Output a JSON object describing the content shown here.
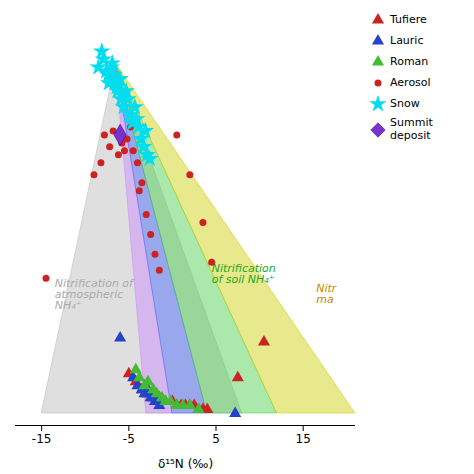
{
  "chart_data": {
    "type": "scatter",
    "xlabel": "δ¹⁵N (‰)",
    "xlim": [
      -18,
      21
    ],
    "ylim": [
      -3,
      100
    ],
    "xticks": [
      -15,
      -5,
      5,
      15
    ],
    "tick_labels": "x",
    "grid": false,
    "legend": "right",
    "zones": [
      {
        "color": "#b8b8b8",
        "points": [
          [
            -6.5,
            88
          ],
          [
            -15,
            0
          ],
          [
            8,
            0
          ]
        ]
      },
      {
        "color": "#cc88ff",
        "points": [
          [
            -6.5,
            88
          ],
          [
            -3,
            0
          ],
          [
            0,
            0
          ]
        ]
      },
      {
        "color": "#4466ff",
        "points": [
          [
            -6.5,
            88
          ],
          [
            0,
            0
          ],
          [
            4,
            0
          ]
        ]
      },
      {
        "color": "#44cc44",
        "points": [
          [
            -6.5,
            88
          ],
          [
            4,
            0
          ],
          [
            12,
            0
          ]
        ]
      },
      {
        "color": "#cccc00",
        "points": [
          [
            -6.5,
            88
          ],
          [
            12,
            0
          ],
          [
            21,
            0
          ]
        ]
      }
    ],
    "annotations": [
      {
        "text": "Nitrification of\natmospheric\nNH₄⁺",
        "x": -13.5,
        "y": 30,
        "color": "#aaaaaa"
      },
      {
        "text": "Nitrification\nof soil NH₄⁺",
        "x": 4.5,
        "y": 35,
        "color": "#22aa22"
      },
      {
        "text": "Nitr\nma",
        "x": 16.5,
        "y": 30,
        "color": "#cc8800"
      }
    ],
    "series": [
      {
        "name": "Tufiere",
        "color": "#cc2222",
        "marker": "triangle",
        "x": [
          -5.0,
          -4.2,
          -3.5,
          -2.8,
          -2.2,
          -1.5,
          -0.8,
          0.0,
          0.5,
          1.0,
          1.5,
          2.0,
          2.5,
          3.0,
          3.5,
          4.0,
          10.5,
          7.5
        ],
        "values": [
          10,
          8,
          6,
          5,
          4,
          4,
          3,
          3,
          2,
          2,
          2,
          2,
          2,
          1,
          1,
          1,
          18,
          9
        ]
      },
      {
        "name": "Lauric",
        "color": "#2244cc",
        "marker": "triangle",
        "x": [
          -6.0,
          -4.5,
          -4.0,
          -3.5,
          -3.2,
          -3.0,
          -2.8,
          -2.5,
          -2.2,
          -2.0,
          -1.8,
          -1.5,
          7.2
        ],
        "values": [
          19,
          9,
          7,
          6,
          5,
          5,
          6,
          4,
          4,
          3,
          3,
          2,
          0
        ]
      },
      {
        "name": "Roman",
        "color": "#44bb33",
        "marker": "triangle",
        "x": [
          -4.2,
          -3.8,
          -3.2,
          -2.8,
          -2.2,
          -1.8,
          -1.2,
          -0.8,
          -0.2,
          0.5,
          1.2,
          2.0,
          3.0
        ],
        "values": [
          11,
          9,
          7,
          8,
          6,
          5,
          4,
          3,
          3,
          2,
          2,
          2,
          1
        ]
      },
      {
        "name": "Aerosol",
        "color": "#cc2222",
        "marker": "circle",
        "x": [
          -14.5,
          -9.0,
          -8.2,
          -7.8,
          -7.2,
          -6.8,
          -6.2,
          -5.8,
          -5.5,
          -5.2,
          -4.8,
          -4.5,
          -4.0,
          -3.8,
          -3.5,
          -3.0,
          -2.5,
          -2.0,
          -1.5,
          0.5,
          2.0,
          3.5,
          4.5
        ],
        "values": [
          34,
          60,
          63,
          70,
          67,
          71,
          65,
          68,
          66,
          69,
          72,
          66,
          63,
          56,
          58,
          50,
          45,
          40,
          36,
          70,
          60,
          48,
          38
        ]
      },
      {
        "name": "Snow",
        "color": "#00ddee",
        "marker": "star",
        "x": [
          -8.5,
          -8.1,
          -7.9,
          -7.6,
          -7.3,
          -7.1,
          -6.9,
          -6.6,
          -6.3,
          -6.1,
          -5.9,
          -5.6,
          -5.3,
          -5.1,
          -4.9,
          -4.6,
          -4.3,
          -4.1,
          -3.9,
          -3.6,
          -3.3,
          -3.1,
          -2.9,
          -2.6,
          -7.4,
          -7.0,
          -6.7,
          -6.4,
          -6.0,
          -5.7
        ],
        "values": [
          87,
          91,
          89,
          86,
          83,
          86,
          88,
          83,
          81,
          84,
          79,
          77,
          81,
          79,
          75,
          73,
          77,
          74,
          72,
          69,
          67,
          71,
          65,
          64,
          85,
          87,
          85,
          82,
          84,
          80
        ]
      },
      {
        "name": "Summit\ndeposit",
        "color": "#7733cc",
        "marker": "diamond",
        "x": [
          -6.0
        ],
        "values": [
          70
        ]
      }
    ]
  }
}
